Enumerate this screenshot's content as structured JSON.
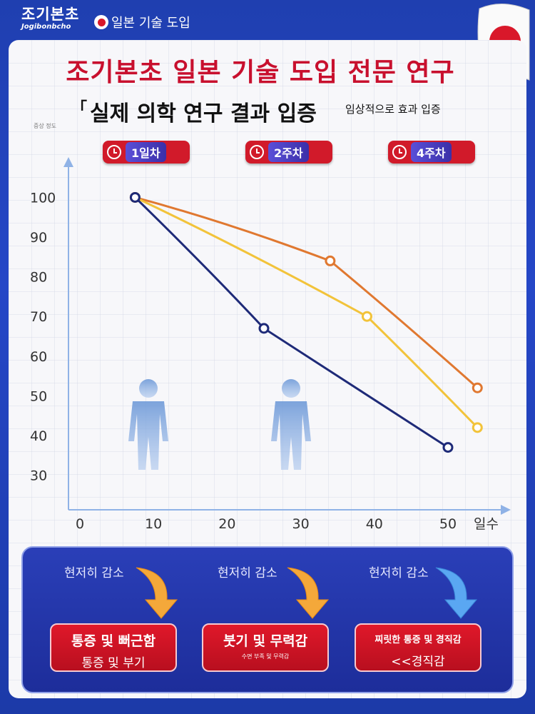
{
  "brand": {
    "name": "조기본초",
    "sub": "Jogibonbcho",
    "top_text": "일본 기술 도입"
  },
  "header": {
    "title": "조기본초 일본 기술 도입 전문 연구",
    "subtitle": "실제 의학 연구 결과 입증",
    "subtitle_note": "임상적으로 효과 입증",
    "y_axis_caption": "증상 정도"
  },
  "badges": [
    {
      "label": "1일차"
    },
    {
      "label": "2주차"
    },
    {
      "label": "4주차"
    }
  ],
  "chart_data": {
    "type": "line",
    "xlabel": "일수",
    "ylabel": "증상 정도",
    "x_ticks": [
      0,
      10,
      20,
      30,
      40,
      50
    ],
    "y_ticks": [
      30,
      40,
      50,
      60,
      70,
      80,
      90,
      100
    ],
    "xlim": [
      0,
      58
    ],
    "ylim": [
      22,
      108
    ],
    "series": [
      {
        "color": "#e07830",
        "points": [
          [
            7.5,
            100
          ],
          [
            34,
            84
          ],
          [
            54,
            52
          ]
        ]
      },
      {
        "color": "#f2c33a",
        "points": [
          [
            7.5,
            100
          ],
          [
            39,
            70
          ],
          [
            54,
            42
          ]
        ]
      },
      {
        "color": "#1e2a78",
        "points": [
          [
            7.5,
            100
          ],
          [
            25,
            67
          ],
          [
            50,
            37
          ]
        ]
      }
    ]
  },
  "bottom": {
    "lead": "현저히 감소",
    "cards": [
      {
        "main": "통증 및 뻐근함",
        "sub": "통증 및 부기"
      },
      {
        "main": "붓기 및 무력감",
        "sub": "수면 부족 및 무력감"
      },
      {
        "main": "찌릿한 통증 및 경직감",
        "sub": "<<경직감"
      }
    ]
  }
}
